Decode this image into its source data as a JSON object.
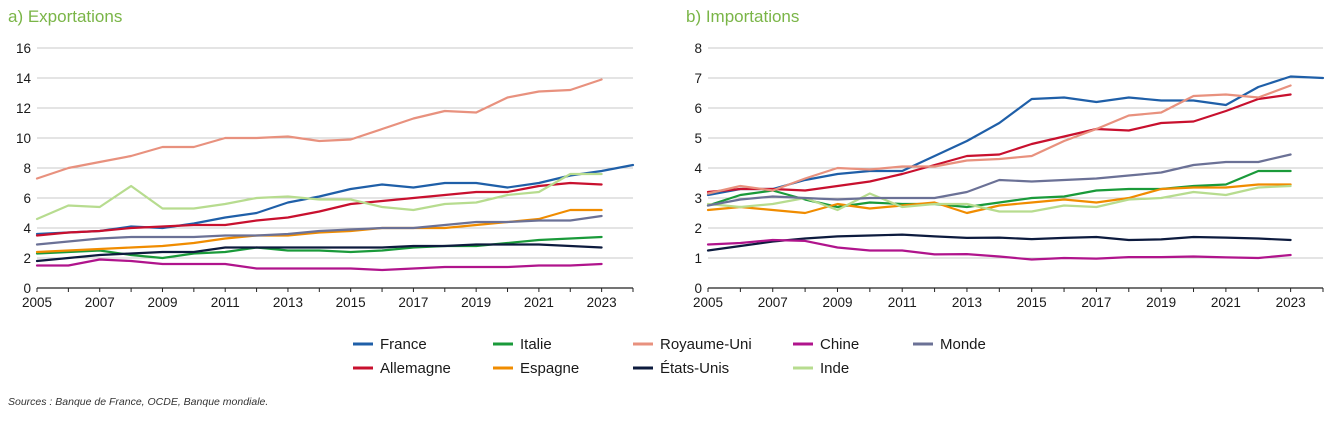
{
  "source": "Sources : Banque de France, OCDE, Banque mondiale.",
  "legend": [
    {
      "name": "France",
      "color": "#1f5fa8"
    },
    {
      "name": "Allemagne",
      "color": "#c8102e"
    },
    {
      "name": "Italie",
      "color": "#1a9a3a"
    },
    {
      "name": "Espagne",
      "color": "#f08c00"
    },
    {
      "name": "Royaume-Uni",
      "color": "#e8917e"
    },
    {
      "name": "États-Unis",
      "color": "#0d1b3e"
    },
    {
      "name": "Chine",
      "color": "#b0148c"
    },
    {
      "name": "Inde",
      "color": "#b7dc8f"
    },
    {
      "name": "Monde",
      "color": "#6b7196"
    }
  ],
  "chart_data": [
    {
      "type": "line",
      "title": "a)  Exportations",
      "xlim": [
        2005,
        2024
      ],
      "ylim": [
        0,
        16
      ],
      "xticks": [
        2005,
        2007,
        2009,
        2011,
        2013,
        2015,
        2017,
        2019,
        2021,
        2023
      ],
      "yticks": [
        0,
        2,
        4,
        6,
        8,
        10,
        12,
        14,
        16
      ],
      "grid": true,
      "x": [
        2005,
        2006,
        2007,
        2008,
        2009,
        2010,
        2011,
        2012,
        2013,
        2014,
        2015,
        2016,
        2017,
        2018,
        2019,
        2020,
        2021,
        2022,
        2023,
        2024
      ],
      "series": [
        {
          "name": "France",
          "color": "#1f5fa8",
          "values": [
            3.6,
            3.7,
            3.8,
            4.1,
            4.0,
            4.3,
            4.7,
            5.0,
            5.7,
            6.1,
            6.6,
            6.9,
            6.7,
            7.0,
            7.0,
            6.7,
            7.0,
            7.5,
            7.8,
            8.2
          ]
        },
        {
          "name": "Allemagne",
          "color": "#c8102e",
          "values": [
            3.5,
            3.7,
            3.8,
            4.0,
            4.1,
            4.2,
            4.2,
            4.5,
            4.7,
            5.1,
            5.6,
            5.8,
            6.0,
            6.2,
            6.4,
            6.4,
            6.8,
            7.0,
            6.9,
            null
          ]
        },
        {
          "name": "Italie",
          "color": "#1a9a3a",
          "values": [
            2.3,
            2.4,
            2.5,
            2.2,
            2.0,
            2.3,
            2.4,
            2.7,
            2.5,
            2.5,
            2.4,
            2.5,
            2.7,
            2.8,
            2.8,
            3.0,
            3.2,
            3.3,
            3.4,
            null
          ]
        },
        {
          "name": "Espagne",
          "color": "#f08c00",
          "values": [
            2.4,
            2.5,
            2.6,
            2.7,
            2.8,
            3.0,
            3.3,
            3.5,
            3.5,
            3.7,
            3.8,
            4.0,
            4.0,
            4.0,
            4.2,
            4.4,
            4.6,
            5.2,
            5.2,
            null
          ]
        },
        {
          "name": "Royaume-Uni",
          "color": "#e8917e",
          "values": [
            7.3,
            8.0,
            8.4,
            8.8,
            9.4,
            9.4,
            10.0,
            10.0,
            10.1,
            9.8,
            9.9,
            10.6,
            11.3,
            11.8,
            11.7,
            12.7,
            13.1,
            13.2,
            13.9,
            null
          ]
        },
        {
          "name": "États-Unis",
          "color": "#0d1b3e",
          "values": [
            1.8,
            2.0,
            2.2,
            2.3,
            2.4,
            2.4,
            2.7,
            2.7,
            2.7,
            2.7,
            2.7,
            2.7,
            2.8,
            2.8,
            2.9,
            2.9,
            2.9,
            2.8,
            2.7,
            null
          ]
        },
        {
          "name": "Chine",
          "color": "#b0148c",
          "values": [
            1.5,
            1.5,
            1.9,
            1.8,
            1.6,
            1.6,
            1.6,
            1.3,
            1.3,
            1.3,
            1.3,
            1.2,
            1.3,
            1.4,
            1.4,
            1.4,
            1.5,
            1.5,
            1.6,
            null
          ]
        },
        {
          "name": "Inde",
          "color": "#b7dc8f",
          "values": [
            4.6,
            5.5,
            5.4,
            6.8,
            5.3,
            5.3,
            5.6,
            6.0,
            6.1,
            5.9,
            5.9,
            5.4,
            5.2,
            5.6,
            5.7,
            6.2,
            6.4,
            7.6,
            7.6,
            null
          ]
        },
        {
          "name": "Monde",
          "color": "#6b7196",
          "values": [
            2.9,
            3.1,
            3.3,
            3.4,
            3.4,
            3.4,
            3.5,
            3.5,
            3.6,
            3.8,
            3.9,
            4.0,
            4.0,
            4.2,
            4.4,
            4.4,
            4.5,
            4.5,
            4.8,
            null
          ]
        }
      ]
    },
    {
      "type": "line",
      "title": "b)  Importations",
      "xlim": [
        2005,
        2024
      ],
      "ylim": [
        0,
        8
      ],
      "xticks": [
        2005,
        2007,
        2009,
        2011,
        2013,
        2015,
        2017,
        2019,
        2021,
        2023
      ],
      "yticks": [
        0,
        1,
        2,
        3,
        4,
        5,
        6,
        7,
        8
      ],
      "grid": true,
      "x": [
        2005,
        2006,
        2007,
        2008,
        2009,
        2010,
        2011,
        2012,
        2013,
        2014,
        2015,
        2016,
        2017,
        2018,
        2019,
        2020,
        2021,
        2022,
        2023,
        2024
      ],
      "series": [
        {
          "name": "France",
          "color": "#1f5fa8",
          "values": [
            3.1,
            3.3,
            3.3,
            3.6,
            3.8,
            3.9,
            3.9,
            4.4,
            4.9,
            5.5,
            6.3,
            6.35,
            6.2,
            6.35,
            6.25,
            6.25,
            6.1,
            6.7,
            7.05,
            7.0
          ]
        },
        {
          "name": "Allemagne",
          "color": "#c8102e",
          "values": [
            3.2,
            3.3,
            3.3,
            3.25,
            3.4,
            3.55,
            3.8,
            4.1,
            4.4,
            4.45,
            4.8,
            5.05,
            5.3,
            5.25,
            5.5,
            5.55,
            5.9,
            6.3,
            6.45,
            null
          ]
        },
        {
          "name": "Italie",
          "color": "#1a9a3a",
          "values": [
            2.75,
            3.1,
            3.25,
            2.95,
            2.7,
            2.85,
            2.8,
            2.8,
            2.7,
            2.85,
            3.0,
            3.05,
            3.25,
            3.3,
            3.3,
            3.4,
            3.45,
            3.9,
            3.9,
            null
          ]
        },
        {
          "name": "Espagne",
          "color": "#f08c00",
          "values": [
            2.6,
            2.7,
            2.6,
            2.5,
            2.8,
            2.65,
            2.75,
            2.85,
            2.5,
            2.75,
            2.85,
            2.95,
            2.85,
            3.0,
            3.3,
            3.35,
            3.35,
            3.45,
            3.45,
            null
          ]
        },
        {
          "name": "Royaume-Uni",
          "color": "#e8917e",
          "values": [
            3.15,
            3.4,
            3.25,
            3.65,
            4.0,
            3.95,
            4.05,
            4.05,
            4.25,
            4.3,
            4.4,
            4.9,
            5.3,
            5.75,
            5.85,
            6.4,
            6.45,
            6.35,
            6.75,
            null
          ]
        },
        {
          "name": "États-Unis",
          "color": "#0d1b3e",
          "values": [
            1.25,
            1.4,
            1.55,
            1.65,
            1.72,
            1.75,
            1.78,
            1.72,
            1.67,
            1.68,
            1.63,
            1.67,
            1.7,
            1.6,
            1.62,
            1.7,
            1.68,
            1.65,
            1.6,
            null
          ]
        },
        {
          "name": "Chine",
          "color": "#b0148c",
          "values": [
            1.45,
            1.5,
            1.6,
            1.57,
            1.35,
            1.25,
            1.25,
            1.12,
            1.13,
            1.05,
            0.95,
            1.0,
            0.98,
            1.03,
            1.03,
            1.05,
            1.02,
            1.0,
            1.1,
            null
          ]
        },
        {
          "name": "Inde",
          "color": "#b7dc8f",
          "values": [
            2.8,
            2.7,
            2.8,
            3.0,
            2.6,
            3.15,
            2.7,
            2.8,
            2.8,
            2.55,
            2.55,
            2.75,
            2.7,
            2.95,
            3.0,
            3.2,
            3.1,
            3.35,
            3.4,
            null
          ]
        },
        {
          "name": "Monde",
          "color": "#6b7196",
          "values": [
            2.75,
            2.95,
            3.05,
            3.0,
            2.95,
            3.0,
            3.0,
            3.0,
            3.2,
            3.6,
            3.55,
            3.6,
            3.65,
            3.75,
            3.85,
            4.1,
            4.2,
            4.2,
            4.45,
            null
          ]
        }
      ]
    }
  ]
}
